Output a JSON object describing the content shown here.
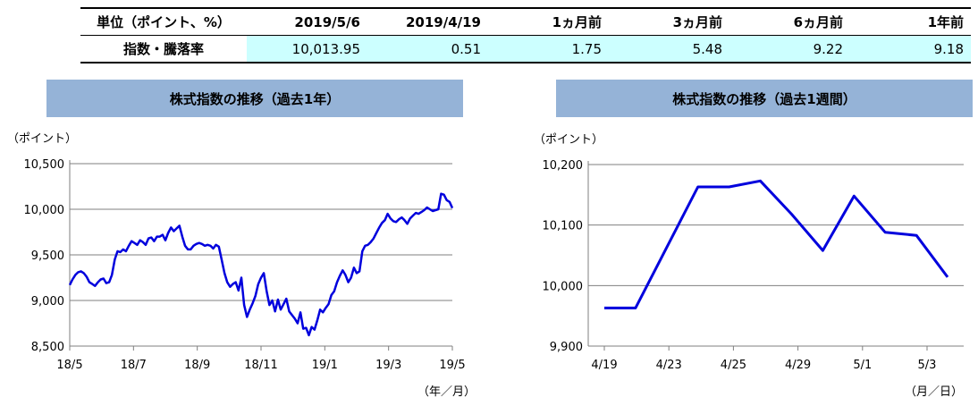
{
  "summary": {
    "headers": [
      "単位（ポイント、%）",
      "2019/5/6",
      "2019/4/19",
      "1ヵ月前",
      "3ヵ月前",
      "6ヵ月前",
      "1年前"
    ],
    "row_label": "指数・騰落率",
    "values": [
      "10,013.95",
      "0.51",
      "1.75",
      "5.48",
      "9.22",
      "9.18"
    ]
  },
  "chart_data": [
    {
      "type": "line",
      "title": "株式指数の推移（過去1年）",
      "ylabel": "（ポイント）",
      "xlabel": "（年／月）",
      "ylim": [
        8500,
        10500
      ],
      "yticks": [
        "10,500",
        "10,000",
        "9,500",
        "9,000",
        "8,500"
      ],
      "ytick_values": [
        10500,
        10000,
        9500,
        9000,
        8500
      ],
      "xticks": [
        "18/5",
        "18/7",
        "18/9",
        "18/11",
        "19/1",
        "19/3",
        "19/5"
      ],
      "grid": true,
      "color": "#0000dd",
      "series": [
        {
          "values": [
            9170,
            9230,
            9280,
            9310,
            9320,
            9300,
            9260,
            9200,
            9180,
            9160,
            9200,
            9230,
            9240,
            9190,
            9200,
            9280,
            9450,
            9540,
            9530,
            9560,
            9540,
            9600,
            9650,
            9630,
            9610,
            9660,
            9640,
            9610,
            9680,
            9690,
            9650,
            9700,
            9700,
            9720,
            9660,
            9740,
            9800,
            9760,
            9790,
            9820,
            9700,
            9600,
            9560,
            9560,
            9600,
            9620,
            9630,
            9620,
            9600,
            9610,
            9600,
            9570,
            9610,
            9590,
            9450,
            9300,
            9200,
            9150,
            9180,
            9200,
            9110,
            9250,
            8950,
            8820,
            8900,
            8970,
            9050,
            9180,
            9250,
            9300,
            9100,
            8950,
            9000,
            8880,
            9010,
            8900,
            8960,
            9020,
            8880,
            8840,
            8800,
            8750,
            8870,
            8690,
            8700,
            8620,
            8710,
            8680,
            8780,
            8900,
            8870,
            8920,
            8960,
            9060,
            9100,
            9200,
            9270,
            9330,
            9280,
            9200,
            9250,
            9360,
            9300,
            9320,
            9540,
            9600,
            9610,
            9640,
            9680,
            9740,
            9800,
            9850,
            9880,
            9950,
            9900,
            9870,
            9860,
            9890,
            9910,
            9880,
            9840,
            9900,
            9930,
            9960,
            9950,
            9970,
            9990,
            10020,
            10000,
            9980,
            9990,
            10000,
            10170,
            10160,
            10100,
            10080,
            10014
          ]
        }
      ]
    },
    {
      "type": "line",
      "title": "株式指数の推移（過去1週間）",
      "ylabel": "（ポイント）",
      "xlabel": "（月／日）",
      "ylim": [
        9900,
        10200
      ],
      "yticks": [
        "10,200",
        "10,100",
        "10,000",
        "9,900"
      ],
      "ytick_values": [
        10200,
        10100,
        10000,
        9900
      ],
      "xticks": [
        "4/19",
        "4/23",
        "4/25",
        "4/29",
        "5/1",
        "5/3"
      ],
      "grid": true,
      "color": "#0000dd",
      "series": [
        {
          "values": [
            9963,
            9963,
            10063,
            10163,
            10163,
            10173,
            10118,
            10058,
            10148,
            10088,
            10083,
            10014
          ]
        }
      ]
    }
  ]
}
